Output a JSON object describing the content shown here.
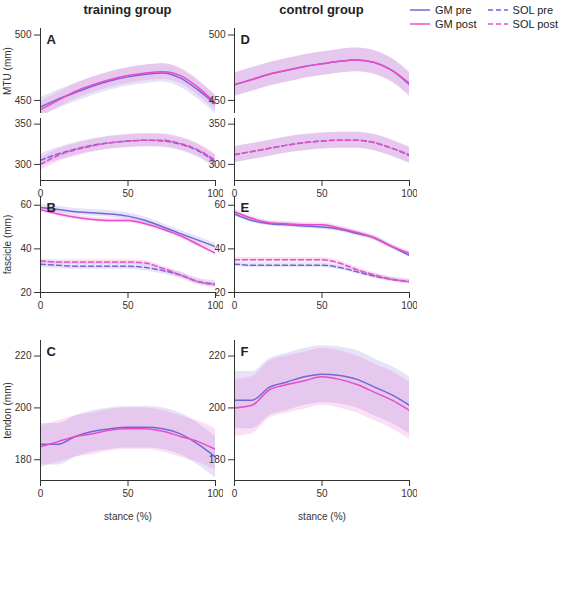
{
  "chart_data": [
    {
      "type": "line",
      "title": "A",
      "subtitle": "training group",
      "ylabel": "MTU (mm)",
      "x": [
        0,
        10,
        20,
        30,
        40,
        50,
        60,
        70,
        80,
        90,
        100
      ],
      "xlim": [
        0,
        100
      ],
      "xticks": [
        0,
        50,
        100
      ],
      "ylim": [
        440,
        505
      ],
      "yticks": [
        450,
        500
      ],
      "tick_labels": "y",
      "legend": "top-right",
      "series": [
        {
          "name": "GM pre",
          "color": "#7466d8",
          "line_style": "solid",
          "values": [
            445,
            451,
            456,
            461,
            465,
            468,
            470,
            471,
            467,
            458,
            447
          ],
          "lower": [
            438,
            444,
            449,
            454,
            458,
            461,
            463,
            464,
            460,
            451,
            440
          ],
          "upper": [
            452,
            458,
            463,
            468,
            472,
            475,
            477,
            478,
            474,
            465,
            454
          ]
        },
        {
          "name": "GM post",
          "color": "#e84cc8",
          "line_style": "solid",
          "values": [
            443,
            450,
            457,
            462,
            466,
            469,
            471,
            472,
            469,
            460,
            448
          ],
          "lower": [
            437,
            444,
            451,
            456,
            460,
            463,
            465,
            466,
            463,
            454,
            442
          ],
          "upper": [
            449,
            456,
            463,
            468,
            472,
            475,
            477,
            478,
            475,
            466,
            454
          ]
        }
      ]
    },
    {
      "type": "line",
      "x": [
        0,
        10,
        20,
        30,
        40,
        50,
        60,
        70,
        80,
        90,
        100
      ],
      "xlim": [
        0,
        100
      ],
      "xticks": [
        0,
        50,
        100
      ],
      "ylim": [
        280,
        357
      ],
      "yticks": [
        300,
        350
      ],
      "series": [
        {
          "name": "SOL pre",
          "color": "#7466d8",
          "line_style": "dashed",
          "values": [
            305,
            313,
            319,
            324,
            327,
            329,
            330,
            329,
            325,
            317,
            303
          ],
          "lower": [
            297,
            305,
            311,
            316,
            319,
            321,
            322,
            321,
            317,
            309,
            295
          ],
          "upper": [
            313,
            321,
            327,
            332,
            335,
            337,
            338,
            337,
            333,
            325,
            311
          ]
        },
        {
          "name": "SOL post",
          "color": "#e84cc8",
          "line_style": "dashed",
          "values": [
            300,
            311,
            318,
            323,
            327,
            329,
            330,
            330,
            326,
            318,
            305
          ],
          "lower": [
            292,
            303,
            310,
            315,
            319,
            321,
            322,
            322,
            318,
            310,
            297
          ],
          "upper": [
            308,
            319,
            326,
            331,
            335,
            337,
            338,
            338,
            334,
            326,
            313
          ]
        }
      ]
    },
    {
      "type": "line",
      "title": "B",
      "ylabel": "fascicle (mm)",
      "x": [
        0,
        10,
        20,
        30,
        40,
        50,
        60,
        70,
        80,
        90,
        100
      ],
      "xlim": [
        0,
        100
      ],
      "xticks": [
        0,
        50,
        100
      ],
      "ylim": [
        20,
        64
      ],
      "yticks": [
        20,
        40,
        60
      ],
      "series": [
        {
          "name": "GM pre",
          "color": "#7466d8",
          "line_style": "solid",
          "values": [
            59,
            58,
            57,
            56.5,
            56,
            55,
            53,
            50,
            47,
            44,
            41
          ],
          "lower": [
            57.5,
            56.5,
            55.5,
            55,
            54.5,
            53.5,
            51.5,
            48.5,
            45.5,
            42.5,
            39.5
          ],
          "upper": [
            60.5,
            59.5,
            58.5,
            58,
            57.5,
            56.5,
            54.5,
            51.5,
            48.5,
            45.5,
            42.5
          ]
        },
        {
          "name": "GM post",
          "color": "#e84cc8",
          "line_style": "solid",
          "values": [
            58,
            56,
            54.5,
            53.5,
            53,
            53,
            51.5,
            49,
            46,
            42,
            38
          ],
          "lower": [
            57,
            55,
            53.5,
            52.5,
            52,
            52,
            50.5,
            48,
            45,
            41,
            37
          ],
          "upper": [
            59,
            57,
            55.5,
            54.5,
            54,
            54,
            52.5,
            50,
            47,
            43,
            39
          ]
        },
        {
          "name": "SOL pre",
          "color": "#7466d8",
          "line_style": "dashed",
          "values": [
            33,
            32.5,
            32,
            32,
            32,
            32,
            31.5,
            30,
            28,
            25,
            24
          ],
          "lower": [
            31.5,
            31,
            30.5,
            30.5,
            30.5,
            30.5,
            30,
            28.5,
            26.5,
            23.5,
            22.5
          ],
          "upper": [
            34.5,
            34,
            33.5,
            33.5,
            33.5,
            33.5,
            33,
            31.5,
            29.5,
            26.5,
            25.5
          ]
        },
        {
          "name": "SOL post",
          "color": "#e84cc8",
          "line_style": "dashed",
          "values": [
            34.5,
            34,
            34,
            34,
            34,
            34,
            33.5,
            31,
            28,
            25,
            23.5
          ],
          "lower": [
            33.5,
            33,
            33,
            33,
            33,
            33,
            32.5,
            30,
            27,
            24,
            22.5
          ],
          "upper": [
            35.5,
            35,
            35,
            35,
            35,
            35,
            34.5,
            32,
            29,
            26,
            24.5
          ]
        }
      ]
    },
    {
      "type": "line",
      "title": "C",
      "ylabel": "tendon (mm)",
      "xlabel": "stance (%)",
      "x": [
        0,
        10,
        20,
        30,
        40,
        50,
        60,
        70,
        80,
        90,
        100
      ],
      "xlim": [
        0,
        100
      ],
      "xticks": [
        0,
        50,
        100
      ],
      "ylim": [
        172,
        226
      ],
      "yticks": [
        180,
        200,
        220
      ],
      "series": [
        {
          "name": "GM pre",
          "color": "#7466d8",
          "line_style": "solid",
          "values": [
            186,
            186,
            189,
            191,
            192,
            192.5,
            192.5,
            192,
            190,
            186,
            181
          ],
          "lower": [
            178,
            178,
            181,
            183,
            184,
            184.5,
            184.5,
            184,
            182,
            178,
            173
          ],
          "upper": [
            194,
            194,
            197,
            199,
            200,
            200.5,
            200.5,
            200,
            198,
            194,
            189
          ]
        },
        {
          "name": "GM post",
          "color": "#e84cc8",
          "line_style": "solid",
          "values": [
            185,
            187,
            189,
            190,
            191.5,
            192,
            192,
            191,
            189,
            187,
            184
          ],
          "lower": [
            177,
            179,
            181,
            182,
            183.5,
            184,
            184,
            183,
            181,
            179,
            176
          ],
          "upper": [
            193,
            195,
            197,
            198,
            199.5,
            200,
            200,
            199,
            197,
            195,
            192
          ]
        }
      ]
    },
    {
      "type": "line",
      "title": "D",
      "subtitle": "control group",
      "x": [
        0,
        10,
        20,
        30,
        40,
        50,
        60,
        70,
        80,
        90,
        100
      ],
      "xlim": [
        0,
        100
      ],
      "xticks": [
        0,
        50,
        100
      ],
      "ylim": [
        440,
        505
      ],
      "yticks": [
        450,
        500
      ],
      "tick_labels": "y",
      "series": [
        {
          "name": "GM pre",
          "color": "#7466d8",
          "line_style": "solid",
          "values": [
            462,
            466,
            470,
            473,
            476,
            478,
            480,
            481,
            479,
            473,
            462
          ],
          "lower": [
            453,
            457,
            461,
            464,
            467,
            469,
            471,
            472,
            470,
            464,
            453
          ],
          "upper": [
            471,
            475,
            479,
            482,
            485,
            487,
            489,
            490,
            488,
            482,
            471
          ]
        },
        {
          "name": "GM post",
          "color": "#e84cc8",
          "line_style": "solid",
          "values": [
            462,
            466,
            470,
            473,
            476,
            478,
            480,
            481,
            479,
            473,
            463
          ],
          "lower": [
            453,
            457,
            461,
            464,
            467,
            469,
            471,
            472,
            470,
            464,
            454
          ],
          "upper": [
            471,
            475,
            479,
            482,
            485,
            487,
            489,
            490,
            488,
            482,
            472
          ]
        }
      ]
    },
    {
      "type": "line",
      "x": [
        0,
        10,
        20,
        30,
        40,
        50,
        60,
        70,
        80,
        90,
        100
      ],
      "xlim": [
        0,
        100
      ],
      "xticks": [
        0,
        50,
        100
      ],
      "ylim": [
        280,
        357
      ],
      "yticks": [
        300,
        350
      ],
      "series": [
        {
          "name": "SOL pre",
          "color": "#7466d8",
          "line_style": "dashed",
          "values": [
            312,
            316,
            320,
            324,
            327,
            329,
            330,
            330,
            327,
            320,
            311
          ],
          "lower": [
            302,
            306,
            310,
            314,
            317,
            319,
            320,
            320,
            317,
            310,
            301
          ],
          "upper": [
            322,
            326,
            330,
            334,
            337,
            339,
            340,
            340,
            337,
            330,
            321
          ]
        },
        {
          "name": "SOL post",
          "color": "#e84cc8",
          "line_style": "dashed",
          "values": [
            312,
            316,
            320,
            324,
            327,
            329,
            330,
            330,
            327,
            320,
            312
          ],
          "lower": [
            302,
            306,
            310,
            314,
            317,
            319,
            320,
            320,
            317,
            310,
            302
          ],
          "upper": [
            322,
            326,
            330,
            334,
            337,
            339,
            340,
            340,
            337,
            330,
            322
          ]
        }
      ]
    },
    {
      "type": "line",
      "title": "E",
      "x": [
        0,
        10,
        20,
        30,
        40,
        50,
        60,
        70,
        80,
        90,
        100
      ],
      "xlim": [
        0,
        100
      ],
      "xticks": [
        0,
        50,
        100
      ],
      "ylim": [
        20,
        64
      ],
      "yticks": [
        20,
        40,
        60
      ],
      "series": [
        {
          "name": "GM pre",
          "color": "#7466d8",
          "line_style": "solid",
          "values": [
            56,
            53,
            51.5,
            51,
            50.5,
            50,
            49,
            47,
            45,
            41,
            37
          ],
          "lower": [
            55,
            52,
            50.5,
            50,
            49.5,
            49,
            48,
            46,
            44,
            40,
            36
          ],
          "upper": [
            57,
            54,
            52.5,
            52,
            51.5,
            51,
            50,
            48,
            46,
            42,
            38
          ]
        },
        {
          "name": "GM post",
          "color": "#e84cc8",
          "line_style": "solid",
          "values": [
            57,
            54,
            52,
            51.5,
            51,
            51,
            49.5,
            47.5,
            45,
            41,
            38
          ],
          "lower": [
            56,
            53,
            51,
            50.5,
            50,
            50,
            48.5,
            46.5,
            44,
            40,
            37
          ],
          "upper": [
            58,
            55,
            53,
            52.5,
            52,
            52,
            50.5,
            48.5,
            46,
            42,
            39
          ]
        },
        {
          "name": "SOL pre",
          "color": "#7466d8",
          "line_style": "dashed",
          "values": [
            33,
            32.5,
            32.5,
            32.5,
            32.5,
            32.5,
            31.5,
            29.5,
            27.5,
            26,
            25
          ],
          "lower": [
            32,
            31.5,
            31.5,
            31.5,
            31.5,
            31.5,
            30.5,
            28.5,
            26.5,
            25,
            24
          ],
          "upper": [
            34,
            33.5,
            33.5,
            33.5,
            33.5,
            33.5,
            32.5,
            30.5,
            28.5,
            27,
            26
          ]
        },
        {
          "name": "SOL post",
          "color": "#e84cc8",
          "line_style": "dashed",
          "values": [
            35,
            35,
            35,
            35,
            35,
            35,
            33.5,
            30.5,
            28,
            26,
            25
          ],
          "lower": [
            34,
            34,
            34,
            34,
            34,
            34,
            32.5,
            29.5,
            27,
            25,
            24
          ],
          "upper": [
            36,
            36,
            36,
            36,
            36,
            36,
            34.5,
            31.5,
            29,
            27,
            26
          ]
        }
      ]
    },
    {
      "type": "line",
      "title": "F",
      "xlabel": "stance (%)",
      "x": [
        0,
        10,
        20,
        30,
        40,
        50,
        60,
        70,
        80,
        90,
        100
      ],
      "xlim": [
        0,
        100
      ],
      "xticks": [
        0,
        50,
        100
      ],
      "ylim": [
        172,
        226
      ],
      "yticks": [
        180,
        200,
        220
      ],
      "series": [
        {
          "name": "GM pre",
          "color": "#7466d8",
          "line_style": "solid",
          "values": [
            203,
            203,
            208,
            210,
            212,
            213,
            212.5,
            211,
            208,
            205,
            201
          ],
          "lower": [
            192,
            192,
            197,
            199,
            201,
            202,
            201.5,
            200,
            197,
            194,
            190
          ],
          "upper": [
            214,
            214,
            219,
            221,
            223,
            224,
            223.5,
            222,
            219,
            216,
            212
          ]
        },
        {
          "name": "GM post",
          "color": "#e84cc8",
          "line_style": "solid",
          "values": [
            200,
            201,
            207,
            209,
            210.5,
            212,
            211,
            209,
            206,
            203,
            199
          ],
          "lower": [
            189,
            190,
            196,
            198,
            199.5,
            201,
            200,
            198,
            195,
            192,
            188
          ],
          "upper": [
            211,
            212,
            218,
            220,
            221.5,
            223,
            222,
            220,
            217,
            214,
            210
          ]
        }
      ]
    }
  ]
}
